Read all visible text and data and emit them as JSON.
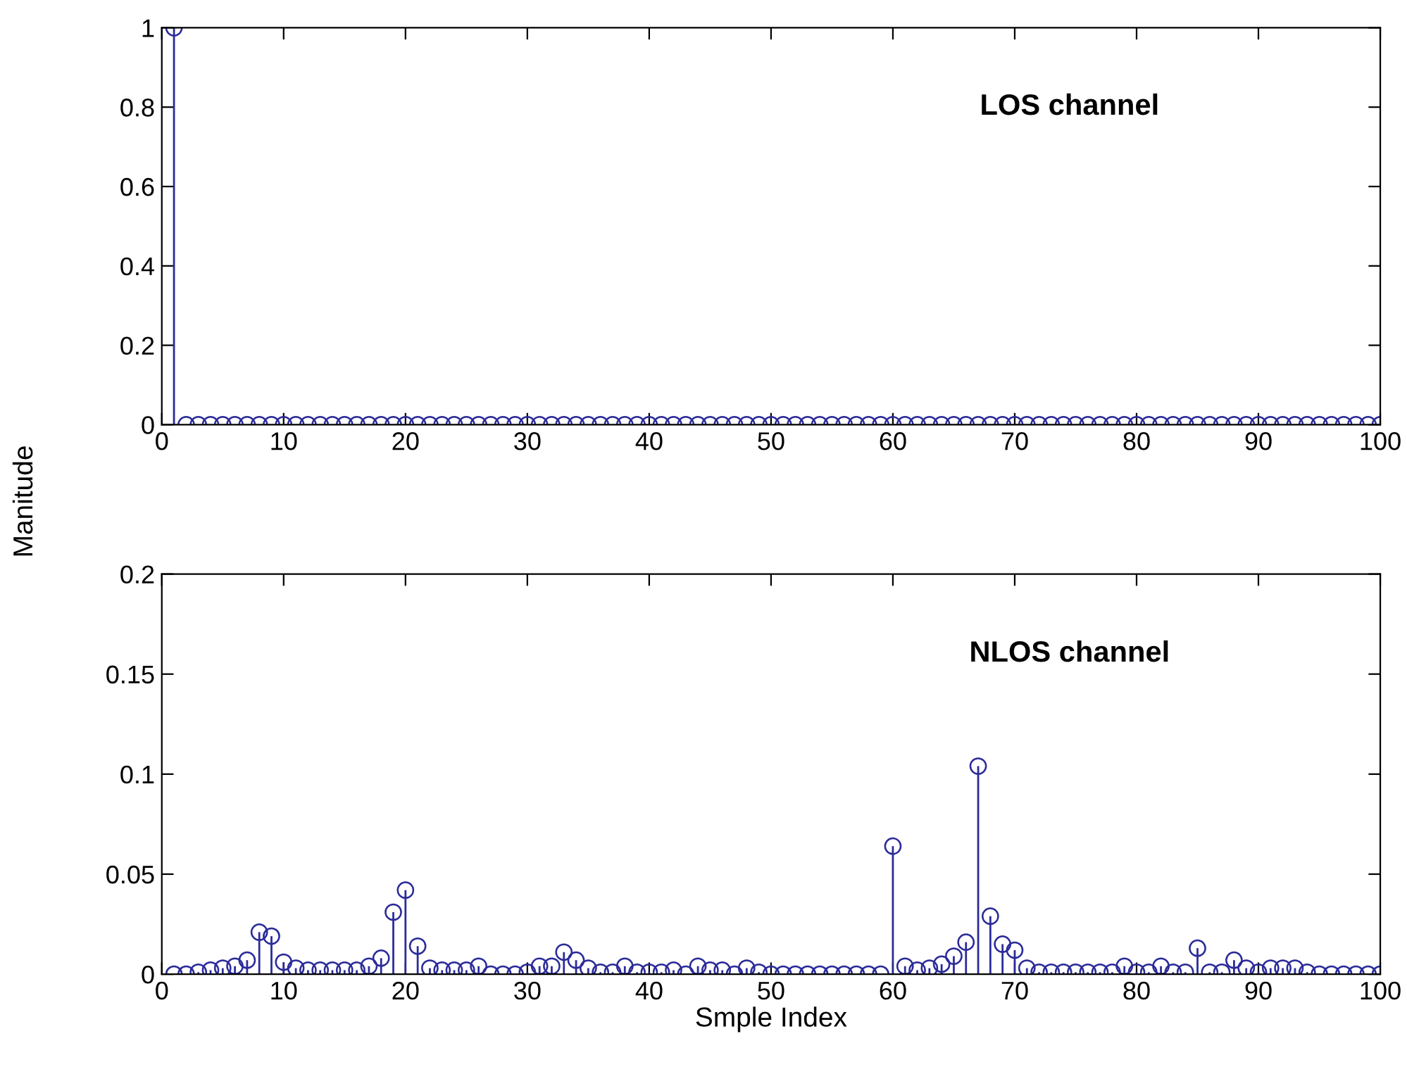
{
  "chart_data": [
    {
      "type": "lollipop",
      "ylabel": "Manitude",
      "annotations": [
        "LOS channel"
      ],
      "marker": "circle",
      "grid": false,
      "legend": false,
      "xlim": [
        0,
        100
      ],
      "ylim": [
        0,
        1
      ],
      "xticks": [
        0,
        10,
        20,
        30,
        40,
        50,
        60,
        70,
        80,
        90,
        100
      ],
      "yticks": [
        0,
        0.2,
        0.4,
        0.6,
        0.8,
        1
      ],
      "x": [
        1,
        2,
        3,
        4,
        5,
        6,
        7,
        8,
        9,
        10,
        11,
        12,
        13,
        14,
        15,
        16,
        17,
        18,
        19,
        20,
        21,
        22,
        23,
        24,
        25,
        26,
        27,
        28,
        29,
        30,
        31,
        32,
        33,
        34,
        35,
        36,
        37,
        38,
        39,
        40,
        41,
        42,
        43,
        44,
        45,
        46,
        47,
        48,
        49,
        50,
        51,
        52,
        53,
        54,
        55,
        56,
        57,
        58,
        59,
        60,
        61,
        62,
        63,
        64,
        65,
        66,
        67,
        68,
        69,
        70,
        71,
        72,
        73,
        74,
        75,
        76,
        77,
        78,
        79,
        80,
        81,
        82,
        83,
        84,
        85,
        86,
        87,
        88,
        89,
        90,
        91,
        92,
        93,
        94,
        95,
        96,
        97,
        98,
        99,
        100
      ],
      "series": [
        {
          "color": "#2b2b9a",
          "values": [
            1,
            0,
            0,
            0,
            0,
            0,
            0,
            0,
            0,
            0,
            0,
            0,
            0,
            0,
            0,
            0,
            0,
            0,
            0,
            0,
            0,
            0,
            0,
            0,
            0,
            0,
            0,
            0,
            0,
            0,
            0,
            0,
            0,
            0,
            0,
            0,
            0,
            0,
            0,
            0,
            0,
            0,
            0,
            0,
            0,
            0,
            0,
            0,
            0,
            0,
            0,
            0,
            0,
            0,
            0,
            0,
            0,
            0,
            0,
            0,
            0,
            0,
            0,
            0,
            0,
            0,
            0,
            0,
            0,
            0,
            0,
            0,
            0,
            0,
            0,
            0,
            0,
            0,
            0,
            0,
            0,
            0,
            0,
            0,
            0,
            0,
            0,
            0,
            0,
            0,
            0,
            0,
            0,
            0,
            0,
            0,
            0,
            0,
            0,
            0
          ]
        }
      ]
    },
    {
      "type": "lollipop",
      "xlabel": "Smple Index",
      "annotations": [
        "NLOS channel"
      ],
      "marker": "circle",
      "grid": false,
      "legend": false,
      "xlim": [
        0,
        100
      ],
      "ylim": [
        0,
        0.2
      ],
      "xticks": [
        0,
        10,
        20,
        30,
        40,
        50,
        60,
        70,
        80,
        90,
        100
      ],
      "yticks": [
        0,
        0.05,
        0.1,
        0.15,
        0.2
      ],
      "x": [
        1,
        2,
        3,
        4,
        5,
        6,
        7,
        8,
        9,
        10,
        11,
        12,
        13,
        14,
        15,
        16,
        17,
        18,
        19,
        20,
        21,
        22,
        23,
        24,
        25,
        26,
        27,
        28,
        29,
        30,
        31,
        32,
        33,
        34,
        35,
        36,
        37,
        38,
        39,
        40,
        41,
        42,
        43,
        44,
        45,
        46,
        47,
        48,
        49,
        50,
        51,
        52,
        53,
        54,
        55,
        56,
        57,
        58,
        59,
        60,
        61,
        62,
        63,
        64,
        65,
        66,
        67,
        68,
        69,
        70,
        71,
        72,
        73,
        74,
        75,
        76,
        77,
        78,
        79,
        80,
        81,
        82,
        83,
        84,
        85,
        86,
        87,
        88,
        89,
        90,
        91,
        92,
        93,
        94,
        95,
        96,
        97,
        98,
        99,
        100
      ],
      "series": [
        {
          "color": "#2b2b9a",
          "values": [
            0,
            0,
            0.001,
            0.002,
            0.003,
            0.004,
            0.007,
            0.021,
            0.019,
            0.006,
            0.003,
            0.002,
            0.002,
            0.002,
            0.002,
            0.002,
            0.004,
            0.008,
            0.031,
            0.042,
            0.014,
            0.003,
            0.002,
            0.002,
            0.002,
            0.004,
            0,
            0,
            0,
            0.001,
            0.004,
            0.004,
            0.011,
            0.007,
            0.003,
            0.001,
            0.001,
            0.004,
            0.001,
            0.001,
            0.001,
            0.002,
            0,
            0.004,
            0.002,
            0.002,
            0,
            0.003,
            0.001,
            0,
            0,
            0,
            0,
            0,
            0,
            0,
            0,
            0,
            0,
            0.064,
            0.004,
            0.002,
            0.003,
            0.005,
            0.009,
            0.016,
            0.104,
            0.029,
            0.015,
            0.012,
            0.003,
            0.001,
            0.001,
            0.001,
            0.001,
            0.001,
            0.001,
            0.001,
            0.004,
            0.001,
            0.001,
            0.004,
            0.001,
            0.001,
            0.013,
            0.001,
            0.001,
            0.007,
            0.003,
            0.001,
            0.003,
            0.003,
            0.003,
            0.001,
            0,
            0,
            0,
            0,
            0,
            0
          ]
        }
      ]
    }
  ]
}
